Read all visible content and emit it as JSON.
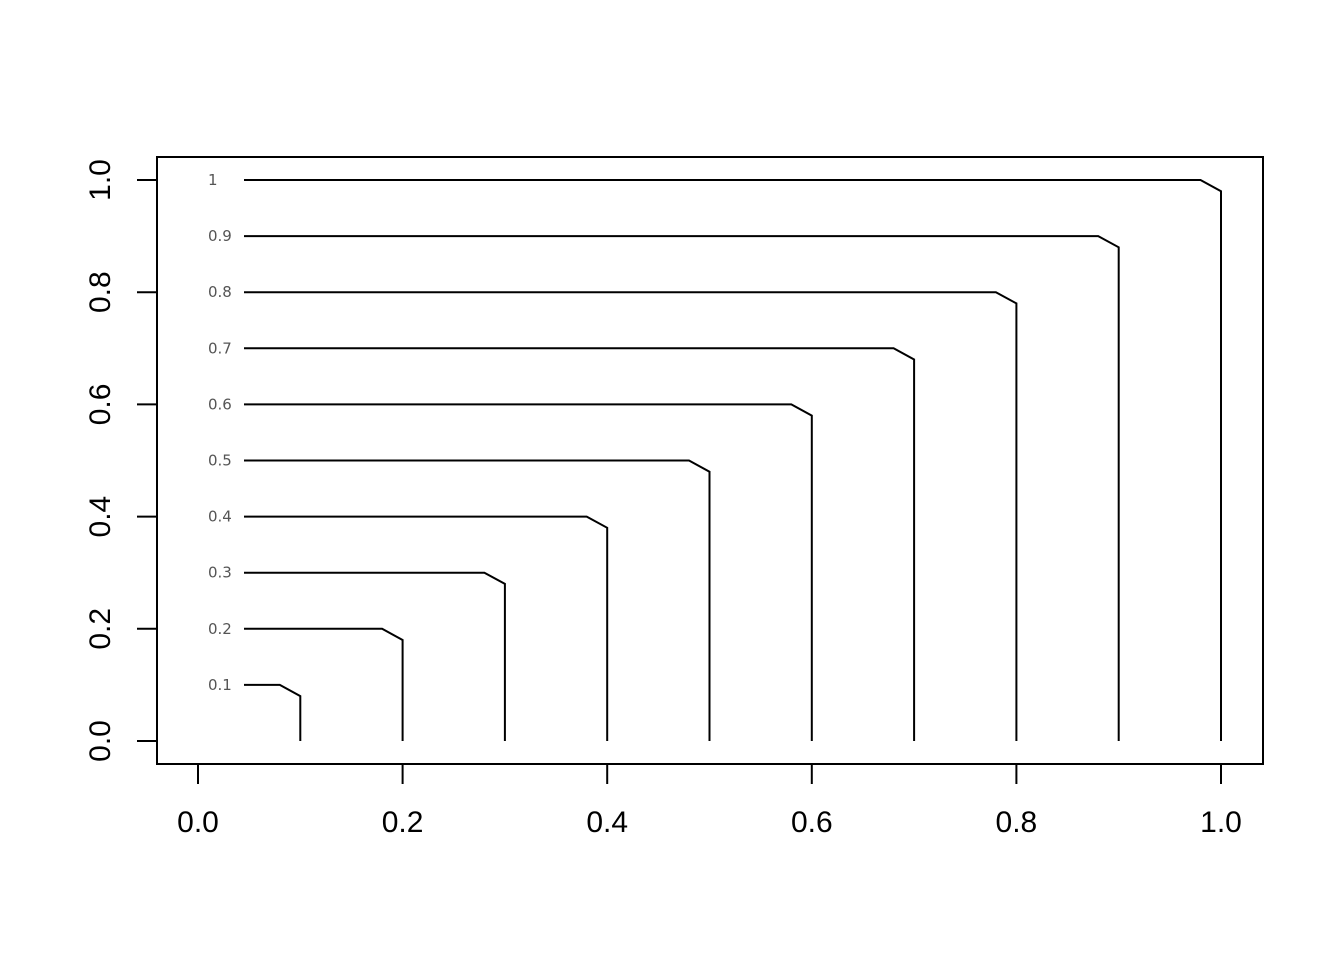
{
  "chart_data": {
    "type": "contour",
    "title": "",
    "xlabel": "",
    "ylabel": "",
    "xlim": [
      -0.04,
      1.04
    ],
    "ylim": [
      -0.04,
      1.04
    ],
    "grid": false,
    "legend": "none",
    "x_ticks": [
      {
        "value": 0.0,
        "label": "0.0"
      },
      {
        "value": 0.2,
        "label": "0.2"
      },
      {
        "value": 0.4,
        "label": "0.4"
      },
      {
        "value": 0.6,
        "label": "0.6"
      },
      {
        "value": 0.8,
        "label": "0.8"
      },
      {
        "value": 1.0,
        "label": "1.0"
      }
    ],
    "y_ticks": [
      {
        "value": 0.0,
        "label": "0.0"
      },
      {
        "value": 0.2,
        "label": "0.2"
      },
      {
        "value": 0.4,
        "label": "0.4"
      },
      {
        "value": 0.6,
        "label": "0.6"
      },
      {
        "value": 0.8,
        "label": "0.8"
      },
      {
        "value": 1.0,
        "label": "1.0"
      }
    ],
    "contour_levels": [
      {
        "level": 0.1,
        "label": "0.1"
      },
      {
        "level": 0.2,
        "label": "0.2"
      },
      {
        "level": 0.3,
        "label": "0.3"
      },
      {
        "level": 0.4,
        "label": "0.4"
      },
      {
        "level": 0.5,
        "label": "0.5"
      },
      {
        "level": 0.6,
        "label": "0.6"
      },
      {
        "level": 0.7,
        "label": "0.7"
      },
      {
        "level": 0.8,
        "label": "0.8"
      },
      {
        "level": 0.9,
        "label": "0.9"
      },
      {
        "level": 1.0,
        "label": "1"
      }
    ],
    "colors": {
      "line": "#000000",
      "contour_label": "#555555"
    }
  }
}
